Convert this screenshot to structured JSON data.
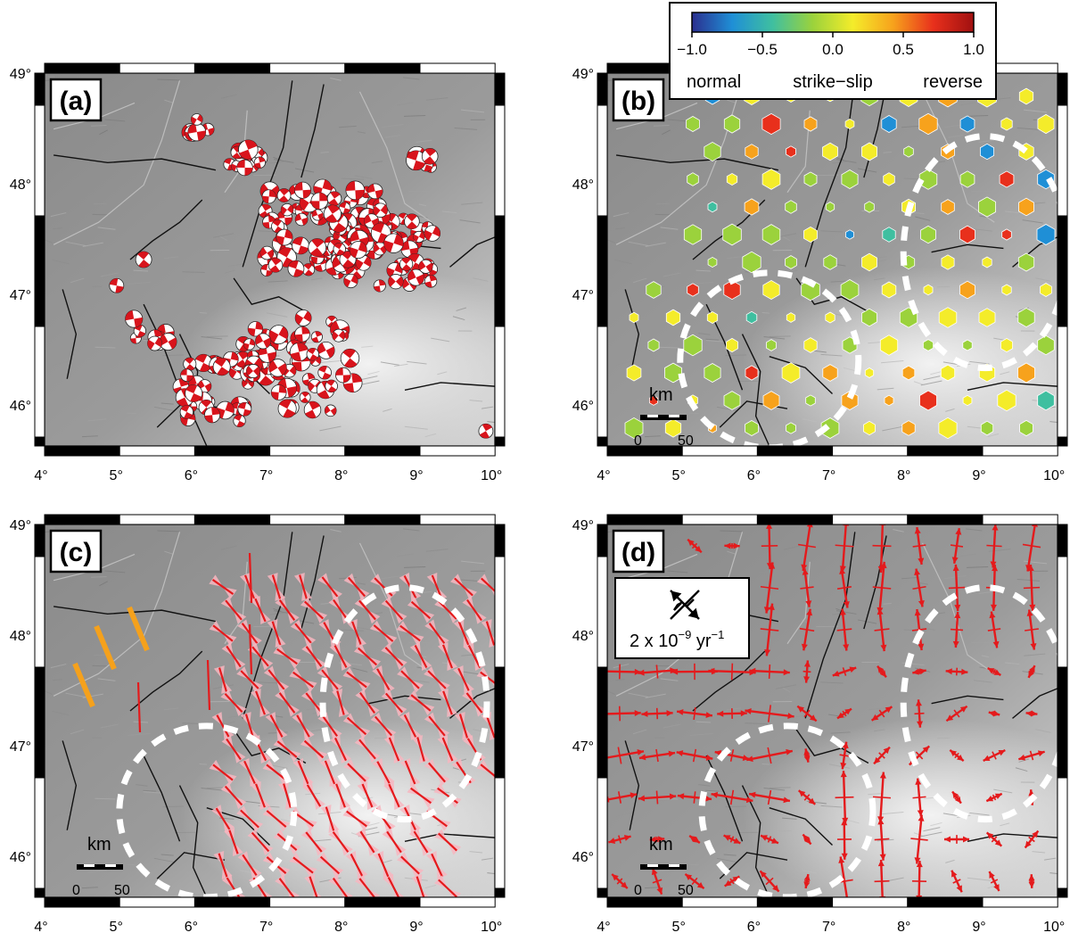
{
  "panels": [
    {
      "id": "a",
      "label": "(a)"
    },
    {
      "id": "b",
      "label": "(b)"
    },
    {
      "id": "c",
      "label": "(c)"
    },
    {
      "id": "d",
      "label": "(d)"
    }
  ],
  "lat_ticks": [
    "49°",
    "48°",
    "47°",
    "46°"
  ],
  "lon_ticks": [
    "4°",
    "5°",
    "6°",
    "7°",
    "8°",
    "9°",
    "10°"
  ],
  "colorbar": {
    "ticks": [
      "−1.0",
      "−0.5",
      "0.0",
      "0.5",
      "1.0"
    ],
    "labels": [
      "normal",
      "strike−slip",
      "reverse"
    ],
    "colors": [
      "#2b2f8f",
      "#1f8fd6",
      "#3fbfa0",
      "#9bd23c",
      "#f4ec2a",
      "#f7a21c",
      "#e8301c",
      "#a01010"
    ]
  },
  "scale_bar": {
    "unit": "km",
    "zero": "0",
    "max": "50"
  },
  "strain_legend": {
    "text": "2 x 10",
    "exponent": "−9",
    "unit_text": " yr",
    "unit_exponent": "−1"
  },
  "colors": {
    "beachball": "#d8141c",
    "arrow": "#e41a1c",
    "stress_bar": "#e41a1c",
    "uncertainty": "#f7b6c0",
    "orange_bar": "#f5a11c"
  }
}
